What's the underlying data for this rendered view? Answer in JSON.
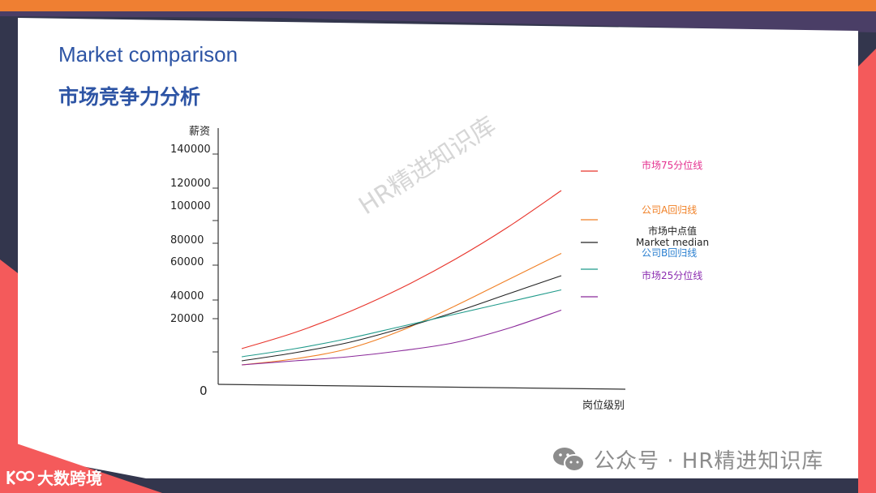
{
  "page": {
    "title": "Market comparison",
    "subtitle": "市场竞争力分析",
    "watermark": "HR精进知识库",
    "footer_text": "公众号 · HR精进知识库",
    "corner_logo_text": "大数跨境",
    "colors": {
      "top_band_dark": "#4a3e66",
      "top_band_orange": "#ef7f32",
      "navy": "#33364d",
      "coral": "#f45a5b",
      "title_blue": "#2e55a5"
    }
  },
  "chart_data": {
    "type": "line",
    "title": "",
    "xlabel": "岗位级别",
    "ylabel": "薪资",
    "y_ticks": [
      "140000",
      "120000",
      "100000",
      "80000",
      "60000",
      "40000",
      "20000",
      "0"
    ],
    "legend_position": "right",
    "grid": false,
    "series": [
      {
        "name": "市场75分位线",
        "color": "#e8342b",
        "legend_color": "#e4308f",
        "x": [
          1,
          2,
          3,
          4,
          5,
          6,
          7
        ],
        "y": [
          9,
          13,
          18,
          24,
          31,
          39,
          48
        ]
      },
      {
        "name": "公司A回归线",
        "color": "#f07f24",
        "legend_color": "#f07f24",
        "x": [
          1,
          2,
          3,
          4,
          5,
          6,
          7
        ],
        "y": [
          5,
          6.5,
          9,
          13.5,
          19.5,
          26,
          32.5
        ]
      },
      {
        "name": "市场中点值 Market median",
        "color": "#222222",
        "legend_color": "#222222",
        "x": [
          1,
          2,
          3,
          4,
          5,
          6,
          7
        ],
        "y": [
          6,
          8,
          10.5,
          14,
          18,
          22.5,
          27
        ]
      },
      {
        "name": "公司B回归线",
        "color": "#1f9a8a",
        "legend_color": "#2a7fd0",
        "x": [
          1,
          2,
          3,
          4,
          5,
          6,
          7
        ],
        "y": [
          7,
          9,
          11.5,
          14.5,
          17.5,
          20.5,
          23.5
        ]
      },
      {
        "name": "市场25分位线",
        "color": "#8b2a9a",
        "legend_color": "#8b2bb0",
        "x": [
          1,
          2,
          3,
          4,
          5,
          6,
          7
        ],
        "y": [
          5,
          6,
          7,
          8.5,
          10.5,
          14,
          18.5
        ]
      }
    ],
    "legend": [
      {
        "label": "市场75分位线"
      },
      {
        "label": "公司A回归线"
      },
      {
        "label": "市场中点值",
        "label2": "Market median"
      },
      {
        "label": "公司B回归线"
      },
      {
        "label": "市场25分位线"
      }
    ]
  }
}
